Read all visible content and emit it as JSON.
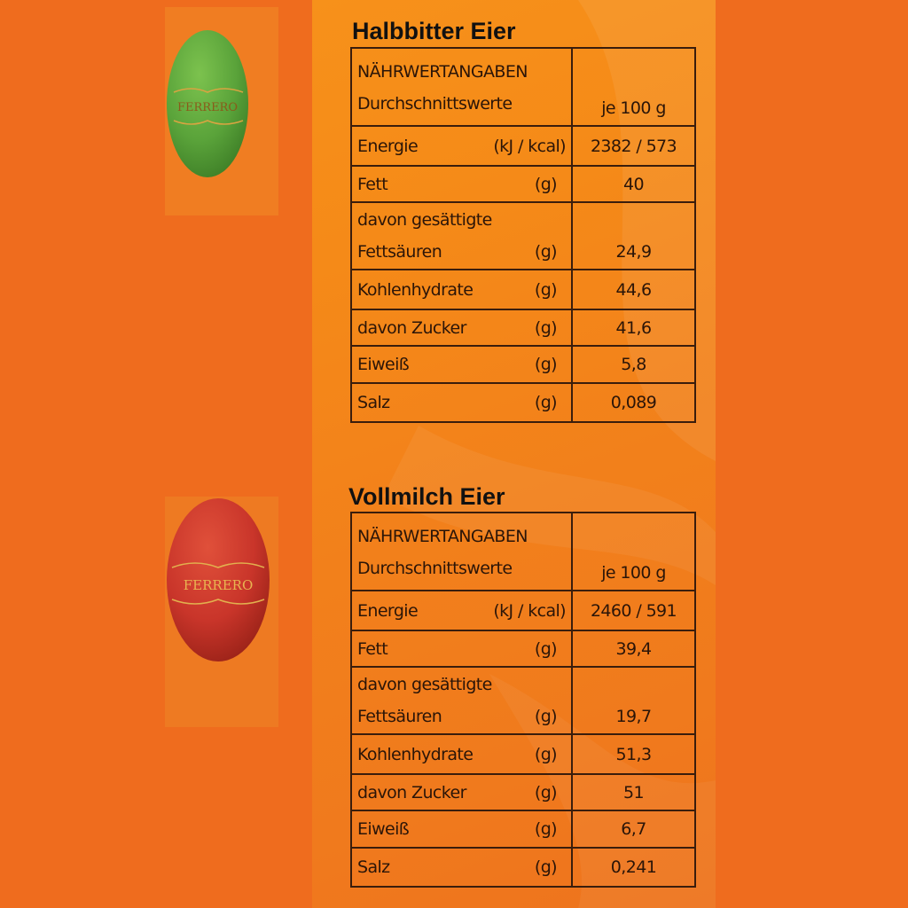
{
  "colors": {
    "background": "#ef6c1e",
    "panel": "#f58a18",
    "border": "#3a1d0c",
    "green_egg": "#5aa33a",
    "red_egg": "#c9352a",
    "gold": "#d9a441"
  },
  "icons": [
    "green-ferrero-egg-icon",
    "red-ferrero-egg-icon"
  ],
  "sections": [
    {
      "title": "Halbbitter Eier",
      "egg_brand": "FERRERO",
      "header_col1_line1": "NÄHRWERTANGABEN",
      "header_col1_line2": "Durchschnittswerte",
      "header_col2": "je 100 g",
      "rows": [
        {
          "label": "Energie",
          "unit": "(kJ  / kcal)",
          "value": "2382 / 573"
        },
        {
          "label": "Fett",
          "unit": "(g)",
          "value": "40"
        },
        {
          "label_line1": "davon gesättigte",
          "label": "Fettsäuren",
          "unit": "(g)",
          "value": "24,9"
        },
        {
          "label": "Kohlenhydrate",
          "unit": "(g)",
          "value": "44,6"
        },
        {
          "label": "davon Zucker",
          "unit": "(g)",
          "value": "41,6"
        },
        {
          "label": "Eiweiß",
          "unit": "(g)",
          "value": "5,8"
        },
        {
          "label": "Salz",
          "unit": "(g)",
          "value": "0,089"
        }
      ]
    },
    {
      "title": "Vollmilch Eier",
      "egg_brand": "FERRERO",
      "header_col1_line1": "NÄHRWERTANGABEN",
      "header_col1_line2": "Durchschnittswerte",
      "header_col2": "je 100 g",
      "rows": [
        {
          "label": "Energie",
          "unit": "(kJ  / kcal)",
          "value": "2460 / 591"
        },
        {
          "label": "Fett",
          "unit": "(g)",
          "value": "39,4"
        },
        {
          "label_line1": "davon gesättigte",
          "label": "Fettsäuren",
          "unit": "(g)",
          "value": "19,7"
        },
        {
          "label": "Kohlenhydrate",
          "unit": "(g)",
          "value": "51,3"
        },
        {
          "label": "davon Zucker",
          "unit": "(g)",
          "value": "51"
        },
        {
          "label": "Eiweiß",
          "unit": "(g)",
          "value": "6,7"
        },
        {
          "label": "Salz",
          "unit": "(g)",
          "value": "0,241"
        }
      ]
    }
  ]
}
